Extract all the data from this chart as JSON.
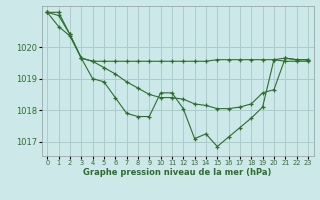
{
  "bg_color": "#cce8e8",
  "grid_color": "#aacccc",
  "line_color": "#2d6e2d",
  "xlabel": "Graphe pression niveau de la mer (hPa)",
  "xlim": [
    -0.5,
    23.5
  ],
  "ylim": [
    1016.55,
    1021.3
  ],
  "yticks": [
    1017,
    1018,
    1019,
    1020
  ],
  "xticks": [
    0,
    1,
    2,
    3,
    4,
    5,
    6,
    7,
    8,
    9,
    10,
    11,
    12,
    13,
    14,
    15,
    16,
    17,
    18,
    19,
    20,
    21,
    22,
    23
  ],
  "series": [
    [
      1021.1,
      1021.1,
      1020.4,
      1019.65,
      1019.55,
      1019.55,
      1019.55,
      1019.55,
      1019.55,
      1019.55,
      1019.55,
      1019.55,
      1019.55,
      1019.55,
      1019.55,
      1019.6,
      1019.6,
      1019.6,
      1019.6,
      1019.6,
      1019.6,
      1019.65,
      1019.6,
      1019.6
    ],
    [
      1021.1,
      1021.0,
      1020.4,
      1019.65,
      1019.55,
      1019.35,
      1019.15,
      1018.9,
      1018.7,
      1018.5,
      1018.4,
      1018.4,
      1018.35,
      1018.2,
      1018.15,
      1018.05,
      1018.05,
      1018.1,
      1018.2,
      1018.55,
      1018.65,
      1019.65,
      1019.6,
      1019.6
    ],
    [
      1021.1,
      1020.65,
      1020.35,
      1019.65,
      1019.0,
      1018.9,
      1018.4,
      1017.9,
      1017.8,
      1017.8,
      1018.55,
      1018.55,
      1018.05,
      1017.1,
      1017.25,
      1016.85,
      1017.15,
      1017.45,
      1017.75,
      1018.1,
      1019.6,
      1019.55,
      1019.55,
      1019.55
    ]
  ]
}
